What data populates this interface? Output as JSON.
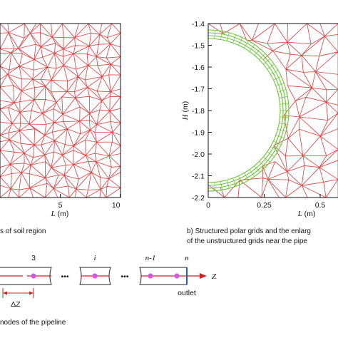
{
  "panel_a": {
    "xlabel_var": "L",
    "xlabel_unit": " (m)",
    "xticks": [
      {
        "v": 5,
        "label": "5"
      },
      {
        "v": 10,
        "label": "10"
      }
    ],
    "caption": "s of soil region"
  },
  "panel_b": {
    "ylabel_var": "H",
    "ylabel_unit": " (m)",
    "xlabel_var": "L",
    "xlabel_unit": " (m)",
    "yticks": [
      "-1.4",
      "-1.5",
      "-1.6",
      "-1.7",
      "-1.8",
      "-1.9",
      "-2.0",
      "-2.1",
      "-2.2"
    ],
    "xticks": [
      "0",
      "0.25",
      "0.5"
    ],
    "caption_line1": "b) Structured polar grids and the enlarg",
    "caption_line2": "of the unstructured grids near the pipe"
  },
  "panel_c": {
    "labels": {
      "node3": "3",
      "nodei": "i",
      "noden1": "n-1",
      "noden": "n",
      "zaxis": "Z",
      "dz": "ΔZ",
      "outlet": "outlet"
    },
    "ellipsis": "•••",
    "caption": "nodes of the pipeline"
  },
  "colors": {
    "mesh": "#e03a3a",
    "ring": "#6cc33a",
    "axis_red": "#d42020",
    "node": "#d05ae0",
    "outlet": "#3050d0"
  }
}
